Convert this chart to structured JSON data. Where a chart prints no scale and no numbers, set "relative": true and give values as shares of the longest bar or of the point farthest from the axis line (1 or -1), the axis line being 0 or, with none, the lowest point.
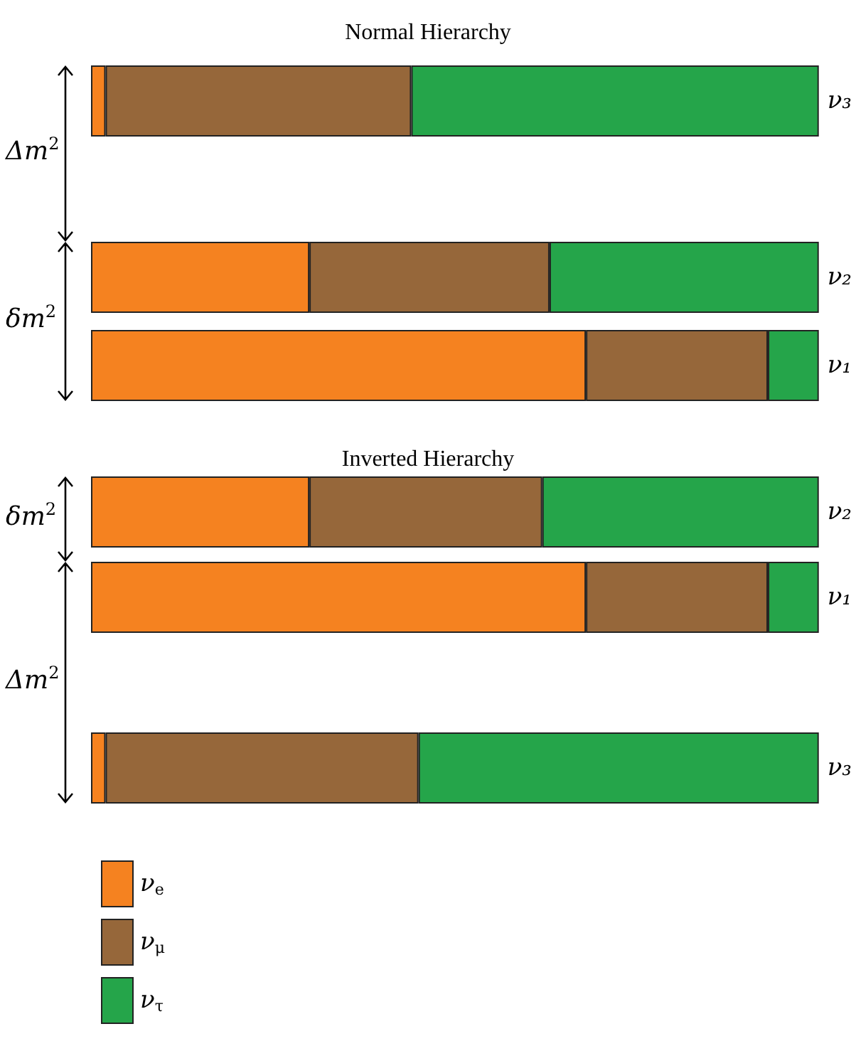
{
  "chart_data": [
    {
      "type": "bar",
      "orientation": "horizontal",
      "stacked": true,
      "relative": true,
      "title": "Normal Hierarchy",
      "categories": [
        "ν₃",
        null,
        "ν₂",
        "ν₁"
      ],
      "series": [
        {
          "color": "#f58220",
          "values": [
            0.02,
            null,
            0.3,
            0.68
          ]
        },
        {
          "color": "#96673a",
          "values": [
            0.42,
            null,
            0.33,
            0.25
          ]
        },
        {
          "color": "#25a54a",
          "values": [
            0.56,
            null,
            0.37,
            0.07
          ]
        }
      ],
      "annotations": [
        "Δm$^{2}$",
        "δm$^{2}$"
      ]
    },
    {
      "type": "bar",
      "orientation": "horizontal",
      "stacked": true,
      "relative": true,
      "title": "Inverted Hierarchy",
      "categories": [
        "ν₂",
        "ν₁",
        null,
        "ν₃"
      ],
      "series": [
        {
          "name": "ν$_{e}$",
          "color": "#f58220",
          "values": [
            0.3,
            0.68,
            null,
            0.02
          ]
        },
        {
          "name": "ν$_{μ}$",
          "color": "#96673a",
          "values": [
            0.32,
            0.25,
            null,
            0.43
          ]
        },
        {
          "name": "ν$_{τ}$",
          "color": "#25a54a",
          "values": [
            0.38,
            0.07,
            null,
            0.55
          ]
        }
      ],
      "annotations": [
        "δm$^{2}$",
        "Δm$^{2}$"
      ],
      "legend": "bottom left"
    }
  ]
}
